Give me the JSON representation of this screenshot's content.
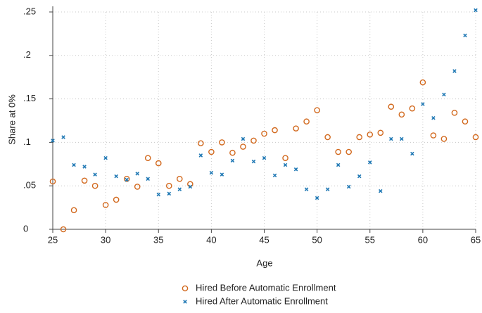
{
  "chart_data": {
    "type": "scatter",
    "x_label": "Age",
    "y_label": "Share at 0%",
    "x": [
      25,
      26,
      27,
      28,
      29,
      30,
      31,
      32,
      33,
      34,
      35,
      36,
      37,
      38,
      39,
      40,
      41,
      42,
      43,
      44,
      45,
      46,
      47,
      48,
      49,
      50,
      51,
      52,
      53,
      54,
      55,
      56,
      57,
      58,
      59,
      60,
      61,
      62,
      63,
      64,
      65
    ],
    "series": [
      {
        "name": "Hired Before Automatic Enrollment",
        "color": "#d2691e",
        "marker": "circle",
        "values": [
          0.055,
          0,
          0.022,
          0.056,
          0.05,
          0.028,
          0.034,
          0.058,
          0.049,
          0.082,
          0.076,
          0.05,
          0.058,
          0.052,
          0.099,
          0.089,
          0.1,
          0.088,
          0.095,
          0.102,
          0.11,
          0.114,
          0.082,
          0.116,
          0.124,
          0.137,
          0.106,
          0.089,
          0.089,
          0.106,
          0.109,
          0.111,
          0.141,
          0.132,
          0.139,
          0.169,
          0.108,
          0.104,
          0.134,
          0.124,
          0.106
        ]
      },
      {
        "name": "Hired After Automatic Enrollment",
        "color": "#1f78b4",
        "marker": "x",
        "values": [
          0.102,
          0.106,
          0.074,
          0.072,
          0.063,
          0.082,
          0.061,
          0.057,
          0.064,
          0.058,
          0.04,
          0.041,
          0.046,
          0.049,
          0.085,
          0.065,
          0.063,
          0.079,
          0.104,
          0.078,
          0.082,
          0.062,
          0.074,
          0.069,
          0.046,
          0.036,
          0.046,
          0.074,
          0.049,
          0.061,
          0.077,
          0.044,
          0.104,
          0.104,
          0.087,
          0.144,
          0.128,
          0.155,
          0.182,
          0.223,
          0.252
        ]
      }
    ],
    "xlim": [
      25,
      65
    ],
    "xticks": [
      25,
      30,
      35,
      40,
      45,
      50,
      55,
      60,
      65
    ],
    "ylim": [
      0,
      0.25
    ],
    "yticks": [
      0,
      {
        "value": 0.05,
        "label": ".05"
      },
      {
        "value": 0.1,
        "label": ".1"
      },
      {
        "value": 0.15,
        "label": ".15"
      },
      {
        "value": 0.2,
        "label": ".2"
      },
      {
        "value": 0.25,
        "label": ".25"
      }
    ],
    "grid": true,
    "legend": "bottom"
  }
}
